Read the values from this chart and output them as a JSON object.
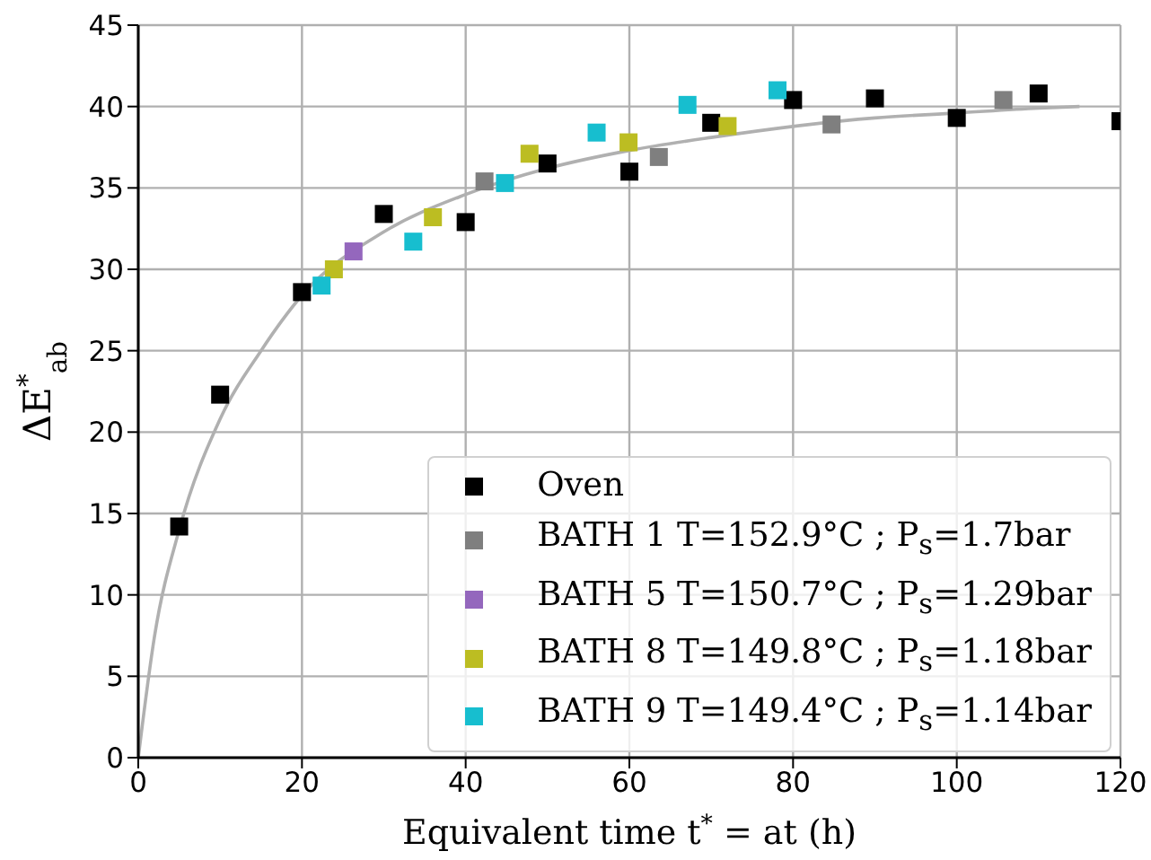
{
  "chart_data": {
    "type": "scatter",
    "xlabel": "Equivalent time t$^{*}$ = at (h)",
    "ylabel": "ΔE$^{*}$$_{ab}$",
    "xlim": [
      0,
      120
    ],
    "xticks": [
      0,
      20,
      40,
      60,
      80,
      100,
      120
    ],
    "ylim": [
      0,
      45
    ],
    "yticks": [
      0,
      5,
      10,
      15,
      20,
      25,
      30,
      35,
      40,
      45
    ],
    "grid": true,
    "legend": "bottom right",
    "marker": "square",
    "series": [
      {
        "name": "Oven",
        "color": "#000000",
        "x": [
          5,
          10,
          20,
          30,
          40,
          50,
          60,
          70,
          80,
          90,
          100,
          110,
          120
        ],
        "values": [
          14.2,
          22.3,
          28.6,
          33.4,
          32.9,
          36.5,
          36.0,
          39.0,
          40.4,
          40.5,
          39.3,
          40.8,
          39.1
        ]
      },
      {
        "name": "BATH 1 T=152.9°C ; P$_{s}$=1.7bar",
        "color": "#7f7f7f",
        "x": [
          42.3,
          63.6,
          84.7,
          105.7
        ],
        "values": [
          35.4,
          36.9,
          38.9,
          40.4
        ]
      },
      {
        "name": "BATH 5 T=150.7°C ; P$_{s}$=1.29bar",
        "color": "#9467bd",
        "x": [
          26.3
        ],
        "values": [
          31.1
        ]
      },
      {
        "name": "BATH 8 T=149.8°C ; P$_{s}$=1.18bar",
        "color": "#bcbd22",
        "x": [
          23.9,
          36.0,
          47.8,
          59.9,
          72.0
        ],
        "values": [
          30.0,
          33.2,
          37.1,
          37.8,
          38.8
        ]
      },
      {
        "name": "BATH 9 T=149.4°C ; P$_{s}$=1.14bar",
        "color": "#17becf",
        "x": [
          22.4,
          33.6,
          44.8,
          56.0,
          67.1,
          78.1
        ],
        "values": [
          29.0,
          31.7,
          35.3,
          38.4,
          40.1,
          41.0
        ]
      },
      {
        "type": "line",
        "color": "#b0b0b0",
        "marker": "none",
        "x": [
          0,
          2,
          5,
          10,
          15,
          20,
          30,
          40,
          50,
          60,
          70,
          90,
          100,
          110,
          115
        ],
        "values": [
          0,
          7.5,
          14,
          20.8,
          25,
          28.4,
          32.3,
          34.6,
          36.2,
          37.3,
          38.1,
          39.3,
          39.6,
          39.9,
          40.0
        ]
      }
    ]
  }
}
